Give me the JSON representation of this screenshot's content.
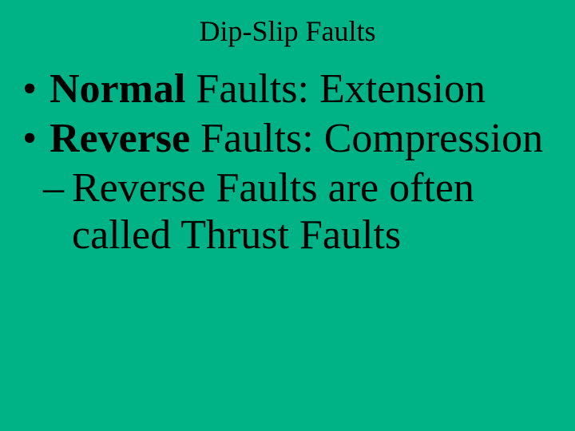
{
  "slide": {
    "background_color": "#00b386",
    "text_color": "#000000",
    "title": "Dip-Slip Faults",
    "title_fontsize": 36,
    "body_fontsize": 52,
    "font_family": "Times New Roman",
    "bullets": [
      {
        "bold_part": "Normal",
        "rest": " Faults: Extension"
      },
      {
        "bold_part": "Reverse",
        "rest": " Faults: Compression"
      }
    ],
    "sub_bullet": "Reverse Faults are often called Thrust Faults"
  }
}
